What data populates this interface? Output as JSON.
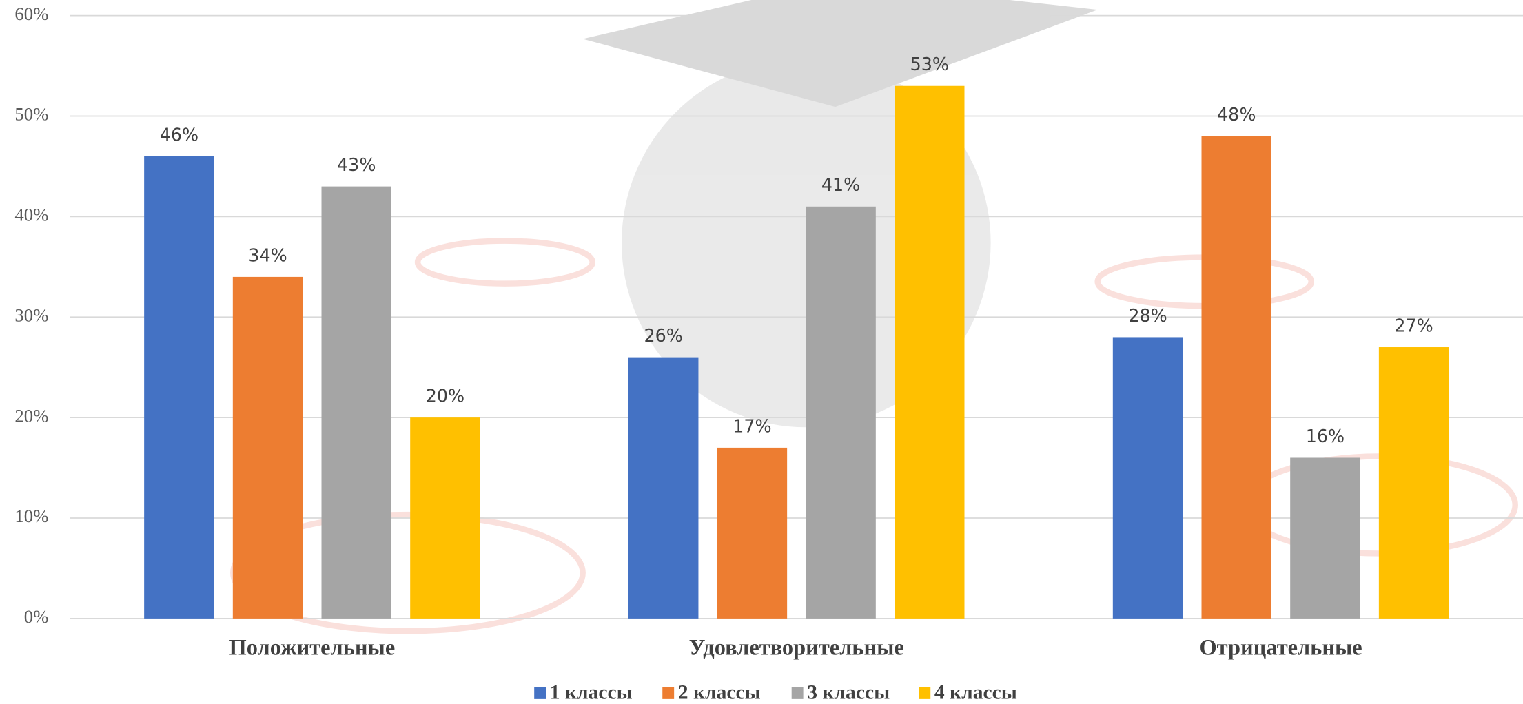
{
  "chart_data": {
    "type": "bar",
    "categories": [
      "Положительные",
      "Удовлетворительные",
      "Отрицательные"
    ],
    "series": [
      {
        "name": "1 классы",
        "color": "#4472c4",
        "values": [
          46,
          26,
          28
        ],
        "value_labels": [
          "46%",
          "26%",
          "28%"
        ]
      },
      {
        "name": "2 классы",
        "color": "#ed7d31",
        "values": [
          34,
          17,
          48
        ],
        "value_labels": [
          "34%",
          "17%",
          "48%"
        ]
      },
      {
        "name": "3 классы",
        "color": "#a5a5a5",
        "values": [
          43,
          41,
          16
        ],
        "value_labels": [
          "43%",
          "41%",
          "16%"
        ]
      },
      {
        "name": "4 классы",
        "color": "#ffc000",
        "values": [
          20,
          53,
          27
        ],
        "value_labels": [
          "20%",
          "53%",
          "27%"
        ]
      }
    ],
    "ylim": [
      0,
      60
    ],
    "yticks": [
      {
        "value": 0,
        "label": "0%"
      },
      {
        "value": 10,
        "label": "10%"
      },
      {
        "value": 20,
        "label": "20%"
      },
      {
        "value": 30,
        "label": "30%"
      },
      {
        "value": 40,
        "label": "40%"
      },
      {
        "value": 50,
        "label": "50%"
      },
      {
        "value": 60,
        "label": "60%"
      }
    ],
    "grid": true,
    "legend": "bottom"
  }
}
